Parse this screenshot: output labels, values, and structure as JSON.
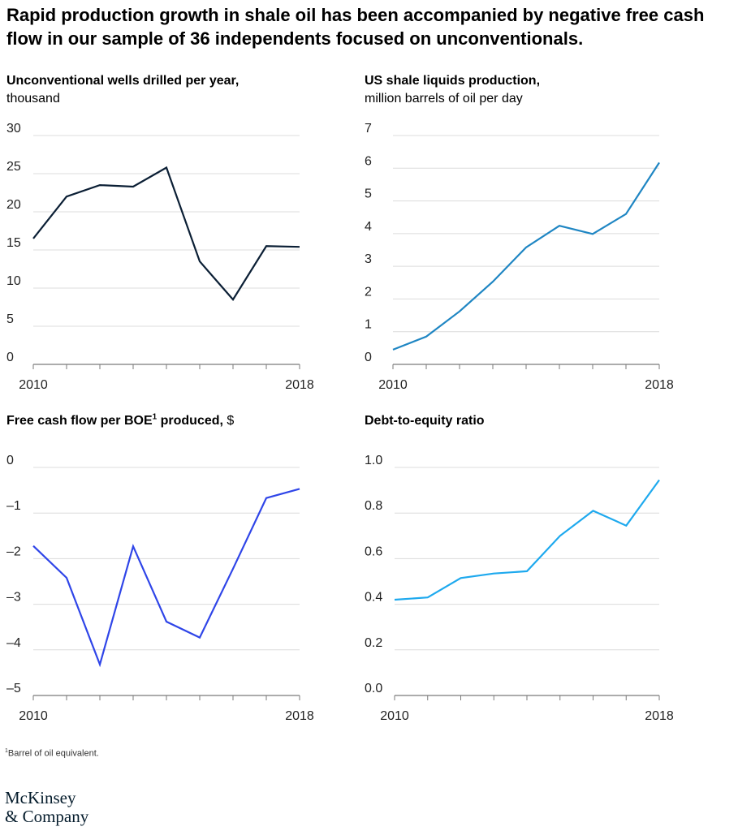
{
  "headline": "Rapid production growth in shale oil has been accompanied by negative free cash flow in our sample of 36 independents focused on unconventionals.",
  "footnote": {
    "marker": "1",
    "text": "Barrel of oil equivalent."
  },
  "logo": {
    "line1": "McKinsey",
    "line2": "& Company"
  },
  "panels": [
    {
      "title_bold": "Unconventional wells drilled per year,",
      "title_sup": "",
      "title_unit_inline": "",
      "title_sub": "thousand",
      "color": "#0b1f35"
    },
    {
      "title_bold": "US shale liquids production,",
      "title_sup": "",
      "title_unit_inline": "",
      "title_sub": "million barrels of oil per day",
      "color": "#1f86c3"
    },
    {
      "title_bold": "Free cash flow per BOE",
      "title_sup": "1",
      "title_bold_after": " produced,",
      "title_unit_inline": " $",
      "title_sub": "",
      "color": "#2f45e8"
    },
    {
      "title_bold": "Debt-to-equity ratio",
      "title_sup": "",
      "title_unit_inline": "",
      "title_sub": "",
      "color": "#1ea9ee"
    }
  ],
  "chart_data": [
    {
      "type": "line",
      "title": "Unconventional wells drilled per year, thousand",
      "x": [
        2010,
        2011,
        2012,
        2013,
        2014,
        2015,
        2016,
        2017,
        2018
      ],
      "x_tick_labels": [
        "2010",
        "2018"
      ],
      "series": [
        {
          "values": [
            16.5,
            22.0,
            23.5,
            23.3,
            25.8,
            13.5,
            8.5,
            15.5,
            15.4
          ]
        }
      ],
      "y_ticks": [
        0,
        5,
        10,
        15,
        20,
        25,
        30
      ],
      "y_tick_labels": [
        "0",
        "5",
        "10",
        "15",
        "20",
        "25",
        "30"
      ],
      "ylim": [
        0,
        30
      ],
      "grid": true
    },
    {
      "type": "line",
      "title": "US shale liquids production, million barrels of oil per day",
      "x": [
        2010,
        2011,
        2012,
        2013,
        2014,
        2015,
        2016,
        2017,
        2018
      ],
      "x_tick_labels": [
        "2010",
        "2018"
      ],
      "series": [
        {
          "values": [
            0.45,
            0.85,
            1.62,
            2.53,
            3.58,
            4.24,
            3.99,
            4.6,
            6.17
          ]
        }
      ],
      "y_ticks": [
        0,
        1,
        2,
        3,
        4,
        5,
        6,
        7
      ],
      "y_tick_labels": [
        "0",
        "1",
        "2",
        "3",
        "4",
        "5",
        "6",
        "7"
      ],
      "ylim": [
        0,
        7
      ],
      "grid": true
    },
    {
      "type": "line",
      "title": "Free cash flow per BOE produced, $",
      "x": [
        2010,
        2011,
        2012,
        2013,
        2014,
        2015,
        2016,
        2017,
        2018
      ],
      "x_tick_labels": [
        "2010",
        "2018"
      ],
      "series": [
        {
          "values": [
            -1.72,
            -2.42,
            -4.32,
            -1.73,
            -3.38,
            -3.73,
            -2.22,
            -0.67,
            -0.47
          ]
        }
      ],
      "y_ticks": [
        0,
        -1,
        -2,
        -3,
        -4,
        -5
      ],
      "y_tick_labels": [
        "0",
        "–1",
        "–2",
        "–3",
        "–4",
        "–5"
      ],
      "ylim": [
        -5,
        0
      ],
      "grid": true
    },
    {
      "type": "line",
      "title": "Debt-to-equity ratio",
      "x": [
        2010,
        2011,
        2012,
        2013,
        2014,
        2015,
        2016,
        2017,
        2018
      ],
      "x_tick_labels": [
        "2010",
        "2018"
      ],
      "series": [
        {
          "values": [
            0.42,
            0.43,
            0.515,
            0.535,
            0.545,
            0.7,
            0.81,
            0.745,
            0.945
          ]
        }
      ],
      "y_ticks": [
        0,
        0.2,
        0.4,
        0.6,
        0.8,
        1.0
      ],
      "y_tick_labels": [
        "0.0",
        "0.2",
        "0.4",
        "0.6",
        "0.8",
        "1.0"
      ],
      "ylim": [
        0,
        1.0
      ],
      "grid": true
    }
  ]
}
